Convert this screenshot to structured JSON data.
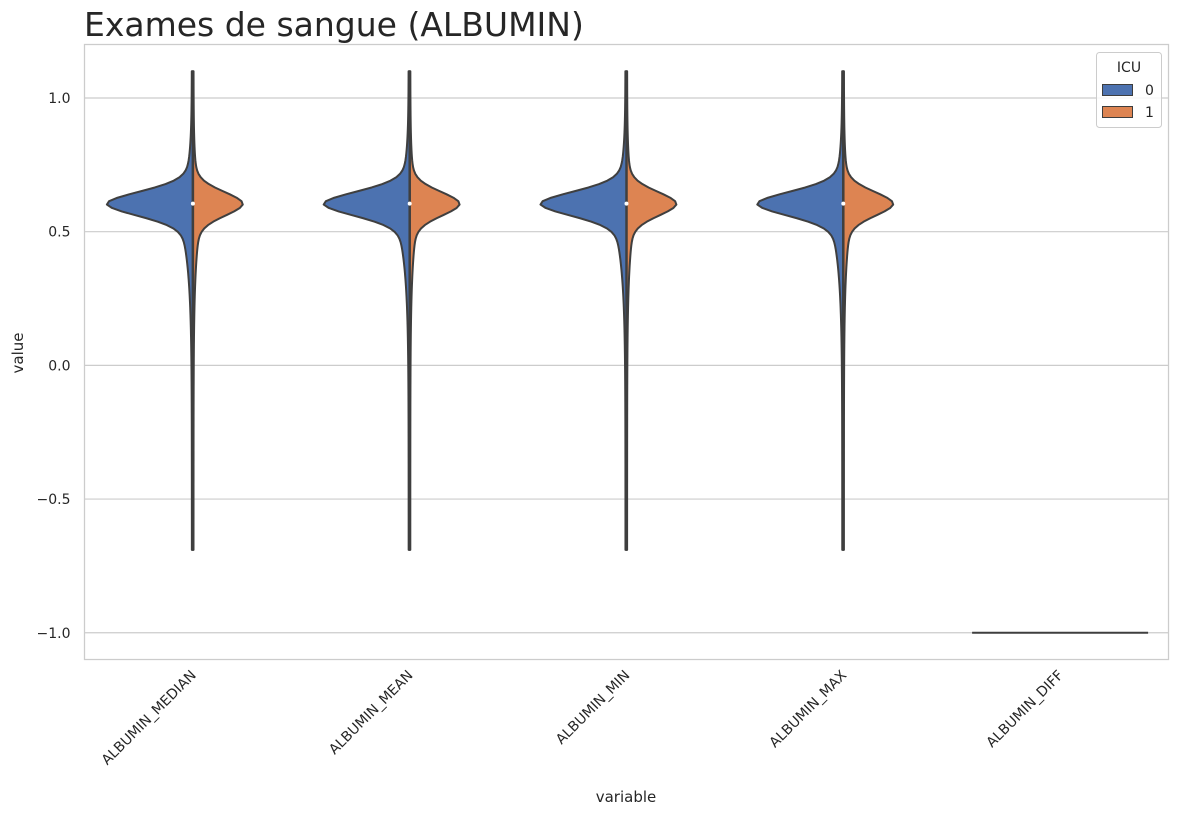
{
  "chart_data": {
    "type": "violin",
    "split": true,
    "title": "Exames de sangue (ALBUMIN)",
    "xlabel": "variable",
    "ylabel": "value",
    "ylim": [
      -1.1,
      1.2
    ],
    "yticks": [
      {
        "value": 1.0,
        "label": "1.0"
      },
      {
        "value": 0.5,
        "label": "0.5"
      },
      {
        "value": 0.0,
        "label": "0.0"
      },
      {
        "value": -0.5,
        "label": "−0.5"
      },
      {
        "value": -1.0,
        "label": "−1.0"
      }
    ],
    "grid": true,
    "grid_axis": "y",
    "categories": [
      "ALBUMIN_MEDIAN",
      "ALBUMIN_MEAN",
      "ALBUMIN_MIN",
      "ALBUMIN_MAX",
      "ALBUMIN_DIFF"
    ],
    "legend": {
      "title": "ICU",
      "placement": "top-right",
      "entries": [
        {
          "label": "0",
          "color": "#4c72b0"
        },
        {
          "label": "1",
          "color": "#dd8452"
        }
      ]
    },
    "series": [
      {
        "name": "0",
        "color": "#4c72b0",
        "side": "left",
        "violins": [
          {
            "category": "ALBUMIN_MEDIAN",
            "range": [
              -0.69,
              1.1
            ],
            "peak": 0.605,
            "median": 0.605
          },
          {
            "category": "ALBUMIN_MEAN",
            "range": [
              -0.69,
              1.1
            ],
            "peak": 0.605,
            "median": 0.605
          },
          {
            "category": "ALBUMIN_MIN",
            "range": [
              -0.69,
              1.1
            ],
            "peak": 0.605,
            "median": 0.605
          },
          {
            "category": "ALBUMIN_MAX",
            "range": [
              -0.69,
              1.1
            ],
            "peak": 0.605,
            "median": 0.605
          },
          {
            "category": "ALBUMIN_DIFF",
            "range": [
              -1.0,
              -1.0
            ],
            "peak": -1.0,
            "median": -1.0
          }
        ]
      },
      {
        "name": "1",
        "color": "#dd8452",
        "side": "right",
        "violins": [
          {
            "category": "ALBUMIN_MEDIAN",
            "range": [
              -0.69,
              1.1
            ],
            "peak": 0.605,
            "median": 0.605
          },
          {
            "category": "ALBUMIN_MEAN",
            "range": [
              -0.69,
              1.1
            ],
            "peak": 0.605,
            "median": 0.605
          },
          {
            "category": "ALBUMIN_MIN",
            "range": [
              -0.69,
              1.1
            ],
            "peak": 0.605,
            "median": 0.605
          },
          {
            "category": "ALBUMIN_MAX",
            "range": [
              -0.69,
              1.1
            ],
            "peak": 0.605,
            "median": 0.605
          },
          {
            "category": "ALBUMIN_DIFF",
            "range": [
              -1.0,
              -1.0
            ],
            "peak": -1.0,
            "median": -1.0
          }
        ]
      }
    ]
  }
}
